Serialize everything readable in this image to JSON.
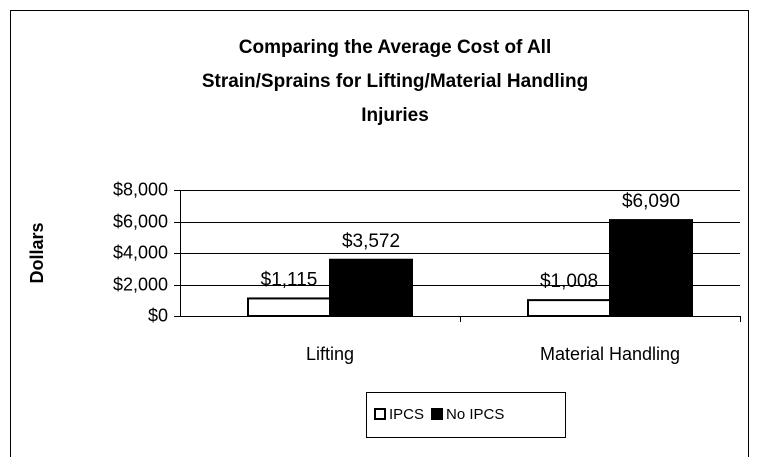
{
  "chart_data": {
    "type": "bar",
    "title": [
      "Comparing the Average Cost of All",
      "Strain/Sprains for Lifting/Material Handling",
      "Injuries"
    ],
    "y_label": "Dollars",
    "categories": [
      "Lifting",
      "Material Handling"
    ],
    "series": [
      {
        "name": "IPCS",
        "color": "#ffffff",
        "values": [
          1115,
          1008
        ],
        "value_labels": [
          "$1,115",
          "$1,008"
        ]
      },
      {
        "name": "No IPCS",
        "color": "#000000",
        "values": [
          3572,
          6090
        ],
        "value_labels": [
          "$3,572",
          "$6,090"
        ]
      }
    ],
    "ylim": [
      0,
      8000
    ],
    "yticks": [
      {
        "value": 0,
        "label": "$0"
      },
      {
        "value": 2000,
        "label": "$2,000"
      },
      {
        "value": 4000,
        "label": "$4,000"
      },
      {
        "value": 6000,
        "label": "$6,000"
      },
      {
        "value": 8000,
        "label": "$8,000"
      }
    ],
    "grid": true,
    "legend": "bottom"
  }
}
